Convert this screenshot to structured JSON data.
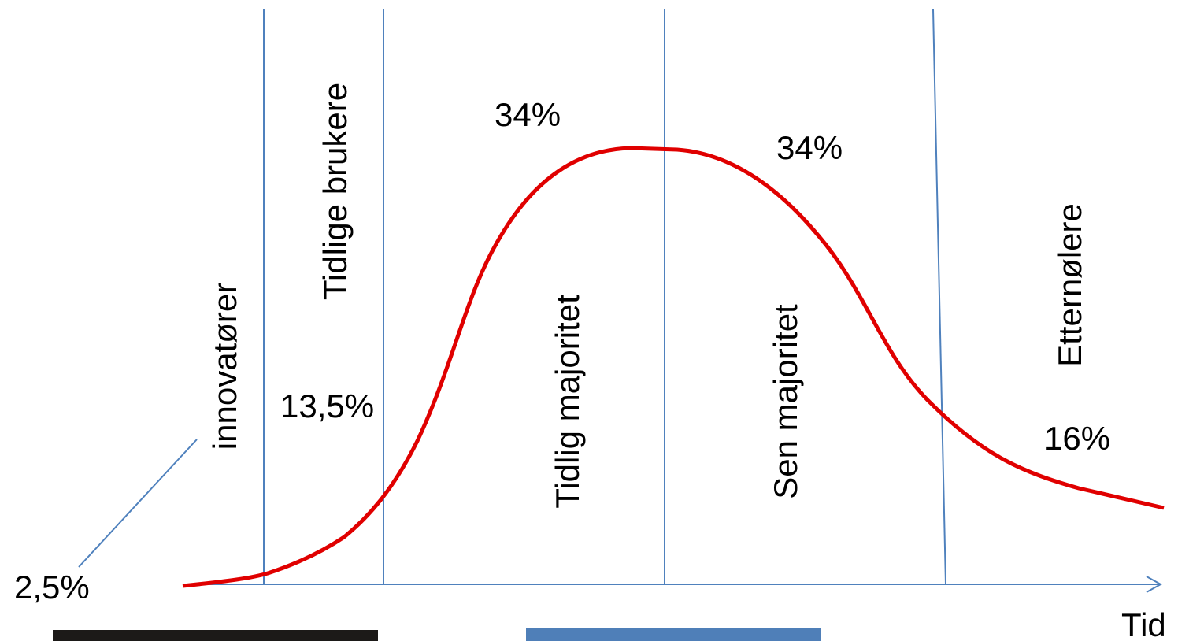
{
  "segments": [
    {
      "label": "innovatører",
      "share": "2,5%"
    },
    {
      "label": "Tidlige brukere",
      "share": "13,5%"
    },
    {
      "label": "Tidlig majoritet",
      "share": "34%"
    },
    {
      "label": "Sen majoritet",
      "share": "34%"
    },
    {
      "label": "Etternølere",
      "share": "16%"
    }
  ],
  "axis": {
    "label": "Tid"
  }
}
